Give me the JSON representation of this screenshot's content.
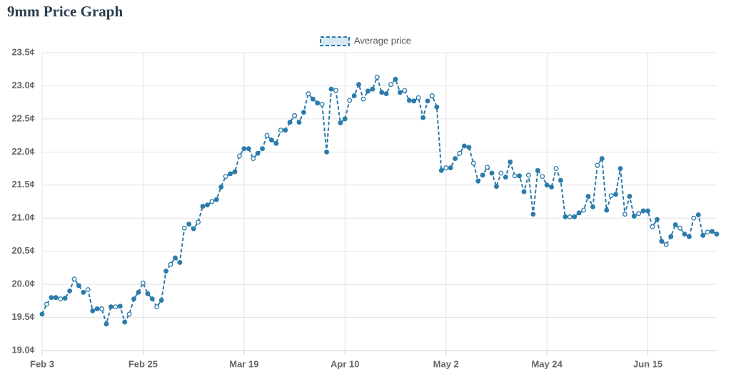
{
  "chart_data": {
    "type": "line",
    "title": "9mm Price Graph",
    "categories": [
      "Feb 3",
      null,
      null,
      null,
      null,
      null,
      null,
      null,
      null,
      null,
      null,
      null,
      null,
      null,
      null,
      null,
      null,
      null,
      null,
      null,
      null,
      null,
      "Feb 25",
      null,
      null,
      null,
      null,
      null,
      null,
      null,
      null,
      null,
      null,
      null,
      null,
      null,
      null,
      null,
      null,
      null,
      null,
      null,
      null,
      null,
      "Mar 19",
      null,
      null,
      null,
      null,
      null,
      null,
      null,
      null,
      null,
      null,
      null,
      null,
      null,
      null,
      null,
      null,
      null,
      null,
      null,
      null,
      null,
      "Apr 10",
      null,
      null,
      null,
      null,
      null,
      null,
      null,
      null,
      null,
      null,
      null,
      null,
      null,
      null,
      null,
      null,
      null,
      null,
      null,
      null,
      null,
      "May 2",
      null,
      null,
      null,
      null,
      null,
      null,
      null,
      null,
      null,
      null,
      null,
      null,
      null,
      null,
      null,
      null,
      null,
      null,
      null,
      null,
      null,
      "May 24",
      null,
      null,
      null,
      null,
      null,
      null,
      null,
      null,
      null,
      null,
      null,
      null,
      null,
      null,
      null,
      null,
      null,
      null,
      null,
      null,
      null,
      "Jun 15",
      null,
      null,
      null,
      null,
      null,
      null,
      null,
      null,
      null,
      null,
      null,
      null,
      null,
      null,
      null
    ],
    "series": [
      {
        "name": "Average price",
        "color": "#2b7bab",
        "values": [
          19.55,
          19.7,
          19.8,
          19.8,
          19.78,
          19.79,
          19.9,
          20.08,
          19.98,
          19.88,
          19.92,
          19.6,
          19.63,
          19.63,
          19.4,
          19.66,
          19.66,
          19.67,
          19.43,
          19.55,
          19.78,
          19.88,
          20.02,
          19.86,
          19.78,
          19.66,
          19.76,
          20.2,
          20.3,
          20.4,
          20.33,
          20.85,
          20.91,
          20.84,
          20.94,
          21.18,
          21.2,
          21.25,
          21.28,
          21.47,
          21.63,
          21.67,
          21.7,
          21.94,
          22.05,
          22.05,
          21.9,
          21.98,
          22.05,
          22.25,
          22.18,
          22.13,
          22.33,
          22.33,
          22.45,
          22.55,
          22.45,
          22.6,
          22.88,
          22.8,
          22.74,
          22.72,
          22.0,
          22.95,
          22.93,
          22.44,
          22.5,
          22.78,
          22.85,
          23.02,
          22.8,
          22.92,
          22.95,
          23.13,
          22.9,
          22.88,
          23.02,
          23.1,
          22.9,
          22.93,
          22.78,
          22.77,
          22.82,
          22.52,
          22.77,
          22.85,
          22.68,
          21.72,
          21.76,
          21.76,
          21.9,
          21.98,
          22.09,
          22.07,
          21.83,
          21.56,
          21.65,
          21.77,
          21.68,
          21.48,
          21.68,
          21.62,
          21.85,
          21.64,
          21.64,
          21.4,
          21.65,
          21.06,
          21.72,
          21.63,
          21.5,
          21.47,
          21.75,
          21.57,
          21.02,
          21.02,
          21.02,
          21.08,
          21.12,
          21.33,
          21.17,
          21.8,
          21.9,
          21.12,
          21.34,
          21.36,
          21.75,
          21.06,
          21.33,
          21.03,
          21.07,
          21.11,
          21.11,
          20.87,
          20.98,
          20.65,
          20.6,
          20.72,
          20.9,
          20.85,
          20.76,
          20.72,
          21.0,
          21.05,
          20.74,
          20.79,
          20.8,
          20.76
        ]
      }
    ],
    "ylim": [
      19.0,
      23.5
    ],
    "yticks": [
      {
        "value": 19.0,
        "label": "19.0¢"
      },
      {
        "value": 19.5,
        "label": "19.5¢"
      },
      {
        "value": 20.0,
        "label": "20.0¢"
      },
      {
        "value": 20.5,
        "label": "20.5¢"
      },
      {
        "value": 21.0,
        "label": "21.0¢"
      },
      {
        "value": 21.5,
        "label": "21.5¢"
      },
      {
        "value": 22.0,
        "label": "22.0¢"
      },
      {
        "value": 22.5,
        "label": "22.5¢"
      },
      {
        "value": 23.0,
        "label": "23.0¢"
      },
      {
        "value": 23.5,
        "label": "23.5¢"
      }
    ],
    "grid": true,
    "legend": "top"
  }
}
